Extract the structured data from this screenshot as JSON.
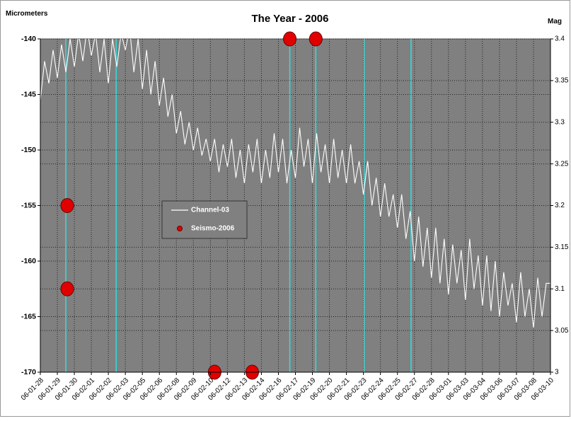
{
  "chart_data": {
    "type": "line",
    "title": "The Year - 2006",
    "y_label": "Micrometers",
    "y2_label": "Mag",
    "xlim": [
      0,
      30
    ],
    "xticks": [
      {
        "value": 0,
        "label": "06-01-28"
      },
      {
        "value": 1,
        "label": "06-01-29"
      },
      {
        "value": 2,
        "label": "06-01-30"
      },
      {
        "value": 3,
        "label": "06-02-01"
      },
      {
        "value": 4,
        "label": "06-02-02"
      },
      {
        "value": 5,
        "label": "06-02-03"
      },
      {
        "value": 6,
        "label": "06-02-05"
      },
      {
        "value": 7,
        "label": "06-02-06"
      },
      {
        "value": 8,
        "label": "06-02-08"
      },
      {
        "value": 9,
        "label": "06-02-09"
      },
      {
        "value": 10,
        "label": "06-02-10"
      },
      {
        "value": 11,
        "label": "06-02-12"
      },
      {
        "value": 12,
        "label": "06-02-13"
      },
      {
        "value": 13,
        "label": "06-02-14"
      },
      {
        "value": 14,
        "label": "06-02-16"
      },
      {
        "value": 15,
        "label": "06-02-17"
      },
      {
        "value": 16,
        "label": "06-02-19"
      },
      {
        "value": 17,
        "label": "06-02-20"
      },
      {
        "value": 18,
        "label": "06-02-21"
      },
      {
        "value": 19,
        "label": "06-02-23"
      },
      {
        "value": 20,
        "label": "06-02-24"
      },
      {
        "value": 21,
        "label": "06-02-25"
      },
      {
        "value": 22,
        "label": "06-02-27"
      },
      {
        "value": 23,
        "label": "06-02-28"
      },
      {
        "value": 24,
        "label": "06-03-01"
      },
      {
        "value": 25,
        "label": "06-03-03"
      },
      {
        "value": 26,
        "label": "06-03-04"
      },
      {
        "value": 27,
        "label": "06-03-06"
      },
      {
        "value": 28,
        "label": "06-03-07"
      },
      {
        "value": 29,
        "label": "06-03-08"
      },
      {
        "value": 30,
        "label": "06-03-10"
      }
    ],
    "ylim": [
      -170,
      -140
    ],
    "yticks": [
      -170,
      -165,
      -160,
      -155,
      -150,
      -145,
      -140
    ],
    "y2lim": [
      3,
      3.4
    ],
    "y2ticks": [
      3,
      3.05,
      3.1,
      3.15,
      3.2,
      3.25,
      3.3,
      3.35,
      3.4
    ],
    "grid": true,
    "series": [
      {
        "name": "Channel-03",
        "color": "#ffffff",
        "values": [
          -145.5,
          -142,
          -144,
          -141,
          -143.5,
          -140.5,
          -143,
          -140,
          -142.5,
          -139.5,
          -142,
          -139,
          -141.5,
          -139.5,
          -143,
          -140,
          -144,
          -140,
          -142.5,
          -139.5,
          -141,
          -139,
          -143,
          -140,
          -144.5,
          -141,
          -145,
          -142,
          -146,
          -143.5,
          -147,
          -145,
          -148.5,
          -146.5,
          -149.5,
          -147.5,
          -150,
          -148,
          -150.5,
          -149,
          -151,
          -149,
          -152,
          -149.5,
          -151.5,
          -149,
          -152.5,
          -150,
          -153,
          -149.5,
          -152,
          -149,
          -153,
          -150,
          -152.5,
          -148.5,
          -152,
          -149,
          -153,
          -150,
          -152.5,
          -148,
          -151.5,
          -149,
          -153,
          -148.5,
          -152,
          -149.5,
          -153,
          -149,
          -152.5,
          -150,
          -153,
          -149.5,
          -153,
          -151,
          -154,
          -151,
          -155,
          -152.5,
          -156,
          -153,
          -156,
          -154,
          -157,
          -154,
          -158,
          -155.5,
          -160,
          -156,
          -160.5,
          -157,
          -161.5,
          -157,
          -162,
          -158,
          -163,
          -158.5,
          -162,
          -159,
          -163.5,
          -158,
          -162.5,
          -159.5,
          -164,
          -159.5,
          -164.5,
          -160,
          -165,
          -161,
          -164,
          -162,
          -165.5,
          -161,
          -165,
          -162.5,
          -166,
          -161.5,
          -165,
          -162,
          -162
        ]
      },
      {
        "name": "Seismo-2006",
        "color": "#e00000",
        "axis": "y2",
        "x": [
          1.58,
          1.58,
          10.25,
          12.46,
          14.67,
          16.2
        ],
        "values": [
          3.2,
          3.1,
          3,
          3,
          3.4,
          3.4
        ]
      }
    ],
    "event_lines": {
      "color": "#33dddd",
      "x": [
        1.5,
        4.46,
        14.67,
        16.2,
        19.04,
        21.8
      ]
    }
  }
}
